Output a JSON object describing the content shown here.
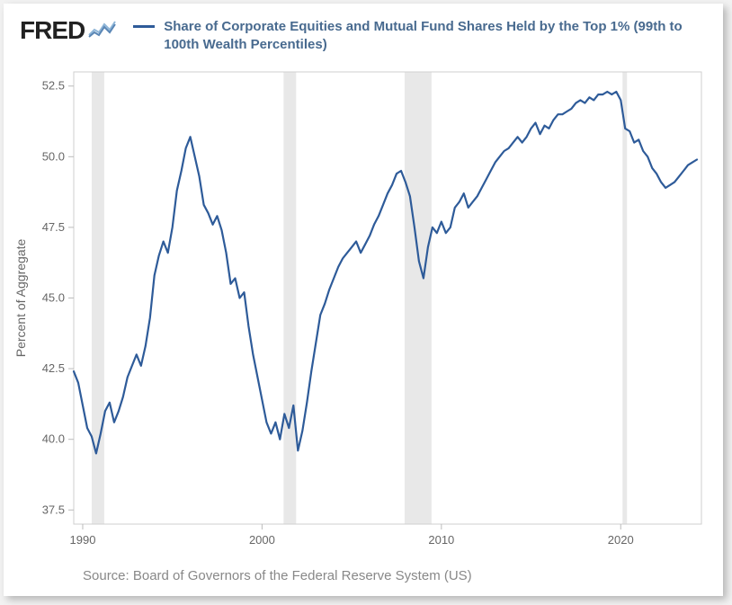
{
  "logo": {
    "text": "FRED"
  },
  "legend": {
    "label": "Share of Corporate Equities and Mutual Fund Shares Held by the Top 1% (99th to 100th Wealth Percentiles)",
    "color": "#2e5b99"
  },
  "source": "Source: Board of Governors of the Federal Reserve System (US)",
  "chart": {
    "type": "line",
    "line_color": "#2e5b99",
    "line_width": 2.2,
    "background_color": "#ffffff",
    "ylabel": "Percent of Aggregate",
    "xlim": [
      1989.5,
      2024.5
    ],
    "ylim": [
      37.0,
      53.0
    ],
    "yticks": [
      37.5,
      40.0,
      42.5,
      45.0,
      47.5,
      50.0,
      52.5
    ],
    "xticks": [
      1990,
      2000,
      2010,
      2020
    ],
    "xtick_labels": [
      "1990",
      "2000",
      "2010",
      "2020"
    ],
    "tick_color": "#bbbbbb",
    "label_fontsize": 13,
    "ylabel_fontsize": 14,
    "axis_box_color": "#cfcfcf",
    "recessions": [
      {
        "start": 1990.5,
        "end": 1991.2
      },
      {
        "start": 2001.2,
        "end": 2001.9
      },
      {
        "start": 2007.95,
        "end": 2009.45
      },
      {
        "start": 2020.1,
        "end": 2020.35
      }
    ],
    "recession_color": "#e8e8e8",
    "series": [
      {
        "x": 1989.5,
        "y": 42.4
      },
      {
        "x": 1989.75,
        "y": 42.0
      },
      {
        "x": 1990.0,
        "y": 41.2
      },
      {
        "x": 1990.25,
        "y": 40.4
      },
      {
        "x": 1990.5,
        "y": 40.1
      },
      {
        "x": 1990.75,
        "y": 39.5
      },
      {
        "x": 1991.0,
        "y": 40.2
      },
      {
        "x": 1991.25,
        "y": 41.0
      },
      {
        "x": 1991.5,
        "y": 41.3
      },
      {
        "x": 1991.75,
        "y": 40.6
      },
      {
        "x": 1992.0,
        "y": 41.0
      },
      {
        "x": 1992.25,
        "y": 41.5
      },
      {
        "x": 1992.5,
        "y": 42.2
      },
      {
        "x": 1992.75,
        "y": 42.6
      },
      {
        "x": 1993.0,
        "y": 43.0
      },
      {
        "x": 1993.25,
        "y": 42.6
      },
      {
        "x": 1993.5,
        "y": 43.3
      },
      {
        "x": 1993.75,
        "y": 44.3
      },
      {
        "x": 1994.0,
        "y": 45.8
      },
      {
        "x": 1994.25,
        "y": 46.5
      },
      {
        "x": 1994.5,
        "y": 47.0
      },
      {
        "x": 1994.75,
        "y": 46.6
      },
      {
        "x": 1995.0,
        "y": 47.5
      },
      {
        "x": 1995.25,
        "y": 48.8
      },
      {
        "x": 1995.5,
        "y": 49.5
      },
      {
        "x": 1995.75,
        "y": 50.3
      },
      {
        "x": 1996.0,
        "y": 50.7
      },
      {
        "x": 1996.25,
        "y": 50.0
      },
      {
        "x": 1996.5,
        "y": 49.3
      },
      {
        "x": 1996.75,
        "y": 48.3
      },
      {
        "x": 1997.0,
        "y": 48.0
      },
      {
        "x": 1997.25,
        "y": 47.6
      },
      {
        "x": 1997.5,
        "y": 47.9
      },
      {
        "x": 1997.75,
        "y": 47.4
      },
      {
        "x": 1998.0,
        "y": 46.6
      },
      {
        "x": 1998.25,
        "y": 45.5
      },
      {
        "x": 1998.5,
        "y": 45.7
      },
      {
        "x": 1998.75,
        "y": 45.0
      },
      {
        "x": 1999.0,
        "y": 45.2
      },
      {
        "x": 1999.25,
        "y": 44.0
      },
      {
        "x": 1999.5,
        "y": 43.0
      },
      {
        "x": 1999.75,
        "y": 42.2
      },
      {
        "x": 2000.0,
        "y": 41.4
      },
      {
        "x": 2000.25,
        "y": 40.6
      },
      {
        "x": 2000.5,
        "y": 40.2
      },
      {
        "x": 2000.75,
        "y": 40.6
      },
      {
        "x": 2001.0,
        "y": 40.0
      },
      {
        "x": 2001.25,
        "y": 40.9
      },
      {
        "x": 2001.5,
        "y": 40.4
      },
      {
        "x": 2001.75,
        "y": 41.2
      },
      {
        "x": 2002.0,
        "y": 39.6
      },
      {
        "x": 2002.25,
        "y": 40.3
      },
      {
        "x": 2002.5,
        "y": 41.3
      },
      {
        "x": 2002.75,
        "y": 42.4
      },
      {
        "x": 2003.0,
        "y": 43.4
      },
      {
        "x": 2003.25,
        "y": 44.4
      },
      {
        "x": 2003.5,
        "y": 44.8
      },
      {
        "x": 2003.75,
        "y": 45.3
      },
      {
        "x": 2004.0,
        "y": 45.7
      },
      {
        "x": 2004.25,
        "y": 46.1
      },
      {
        "x": 2004.5,
        "y": 46.4
      },
      {
        "x": 2004.75,
        "y": 46.6
      },
      {
        "x": 2005.0,
        "y": 46.8
      },
      {
        "x": 2005.25,
        "y": 47.0
      },
      {
        "x": 2005.5,
        "y": 46.6
      },
      {
        "x": 2005.75,
        "y": 46.9
      },
      {
        "x": 2006.0,
        "y": 47.2
      },
      {
        "x": 2006.25,
        "y": 47.6
      },
      {
        "x": 2006.5,
        "y": 47.9
      },
      {
        "x": 2006.75,
        "y": 48.3
      },
      {
        "x": 2007.0,
        "y": 48.7
      },
      {
        "x": 2007.25,
        "y": 49.0
      },
      {
        "x": 2007.5,
        "y": 49.4
      },
      {
        "x": 2007.75,
        "y": 49.5
      },
      {
        "x": 2008.0,
        "y": 49.1
      },
      {
        "x": 2008.25,
        "y": 48.6
      },
      {
        "x": 2008.5,
        "y": 47.5
      },
      {
        "x": 2008.75,
        "y": 46.3
      },
      {
        "x": 2009.0,
        "y": 45.7
      },
      {
        "x": 2009.25,
        "y": 46.8
      },
      {
        "x": 2009.5,
        "y": 47.5
      },
      {
        "x": 2009.75,
        "y": 47.3
      },
      {
        "x": 2010.0,
        "y": 47.7
      },
      {
        "x": 2010.25,
        "y": 47.3
      },
      {
        "x": 2010.5,
        "y": 47.5
      },
      {
        "x": 2010.75,
        "y": 48.2
      },
      {
        "x": 2011.0,
        "y": 48.4
      },
      {
        "x": 2011.25,
        "y": 48.7
      },
      {
        "x": 2011.5,
        "y": 48.2
      },
      {
        "x": 2011.75,
        "y": 48.4
      },
      {
        "x": 2012.0,
        "y": 48.6
      },
      {
        "x": 2012.25,
        "y": 48.9
      },
      {
        "x": 2012.5,
        "y": 49.2
      },
      {
        "x": 2012.75,
        "y": 49.5
      },
      {
        "x": 2013.0,
        "y": 49.8
      },
      {
        "x": 2013.25,
        "y": 50.0
      },
      {
        "x": 2013.5,
        "y": 50.2
      },
      {
        "x": 2013.75,
        "y": 50.3
      },
      {
        "x": 2014.0,
        "y": 50.5
      },
      {
        "x": 2014.25,
        "y": 50.7
      },
      {
        "x": 2014.5,
        "y": 50.5
      },
      {
        "x": 2014.75,
        "y": 50.7
      },
      {
        "x": 2015.0,
        "y": 51.0
      },
      {
        "x": 2015.25,
        "y": 51.2
      },
      {
        "x": 2015.5,
        "y": 50.8
      },
      {
        "x": 2015.75,
        "y": 51.1
      },
      {
        "x": 2016.0,
        "y": 51.0
      },
      {
        "x": 2016.25,
        "y": 51.3
      },
      {
        "x": 2016.5,
        "y": 51.5
      },
      {
        "x": 2016.75,
        "y": 51.5
      },
      {
        "x": 2017.0,
        "y": 51.6
      },
      {
        "x": 2017.25,
        "y": 51.7
      },
      {
        "x": 2017.5,
        "y": 51.9
      },
      {
        "x": 2017.75,
        "y": 52.0
      },
      {
        "x": 2018.0,
        "y": 51.9
      },
      {
        "x": 2018.25,
        "y": 52.1
      },
      {
        "x": 2018.5,
        "y": 52.0
      },
      {
        "x": 2018.75,
        "y": 52.2
      },
      {
        "x": 2019.0,
        "y": 52.2
      },
      {
        "x": 2019.25,
        "y": 52.3
      },
      {
        "x": 2019.5,
        "y": 52.2
      },
      {
        "x": 2019.75,
        "y": 52.3
      },
      {
        "x": 2020.0,
        "y": 52.0
      },
      {
        "x": 2020.25,
        "y": 51.0
      },
      {
        "x": 2020.5,
        "y": 50.9
      },
      {
        "x": 2020.75,
        "y": 50.5
      },
      {
        "x": 2021.0,
        "y": 50.6
      },
      {
        "x": 2021.25,
        "y": 50.2
      },
      {
        "x": 2021.5,
        "y": 50.0
      },
      {
        "x": 2021.75,
        "y": 49.6
      },
      {
        "x": 2022.0,
        "y": 49.4
      },
      {
        "x": 2022.25,
        "y": 49.1
      },
      {
        "x": 2022.5,
        "y": 48.9
      },
      {
        "x": 2022.75,
        "y": 49.0
      },
      {
        "x": 2023.0,
        "y": 49.1
      },
      {
        "x": 2023.25,
        "y": 49.3
      },
      {
        "x": 2023.5,
        "y": 49.5
      },
      {
        "x": 2023.75,
        "y": 49.7
      },
      {
        "x": 2024.0,
        "y": 49.8
      },
      {
        "x": 2024.25,
        "y": 49.9
      }
    ]
  }
}
